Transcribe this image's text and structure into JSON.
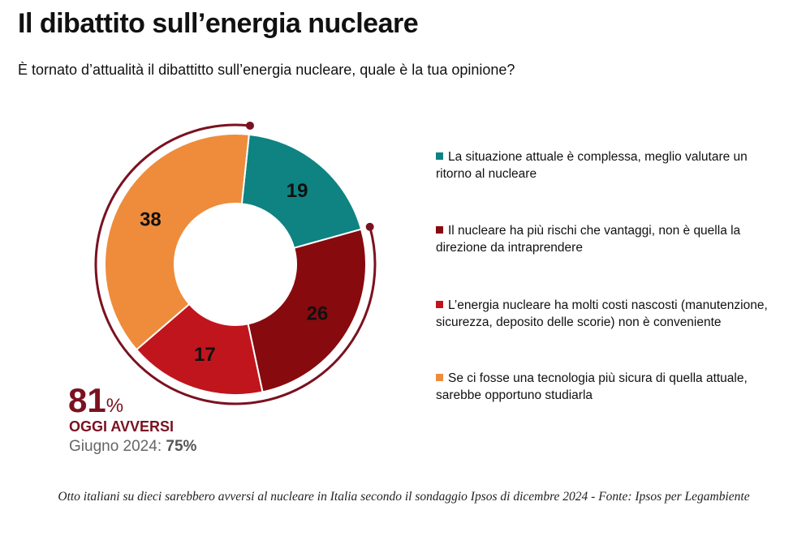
{
  "title": "Il dibattito sull’energia nucleare",
  "subtitle": "È tornato d’attualità il dibattitto sull’energia nucleare, quale è la tua opinione?",
  "chart_data": {
    "type": "donut",
    "categories": [
      "La situazione attuale è complessa, meglio valutare un ritorno al nucleare",
      "Il nucleare ha più rischi che vantaggi, non è quella la direzione da intraprendere",
      "L’energia nucleare ha molti costi nascosti (manutenzione, sicurezza, deposito delle scorie) non è conveniente",
      "Se ci fosse una tecnologia più sicura di quella attuale, sarebbe opportuno studiarla"
    ],
    "values": [
      19,
      26,
      17,
      38
    ],
    "colors": [
      "#0f8282",
      "#870a0e",
      "#c1151d",
      "#ee8c3b"
    ]
  },
  "headline": {
    "value": 81,
    "unit": "%",
    "label": "OGGI AVVERSI",
    "previous_label": "Giugno 2024:",
    "previous_value": "75%"
  },
  "caption": "Otto italiani su dieci sarebbero avversi al nucleare in Italia secondo il sondaggio Ipsos di dicembre 2024 - Fonte: Ipsos per Legambiente"
}
